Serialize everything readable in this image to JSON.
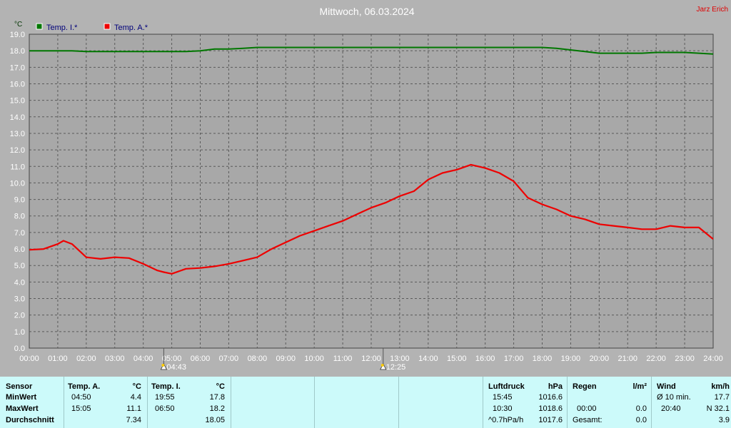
{
  "header": {
    "title": "Mittwoch, 06.03.2024",
    "author": "Jarz Erich",
    "y_unit": "°C"
  },
  "chart_data": {
    "type": "line",
    "title": "Mittwoch, 06.03.2024",
    "ylabel": "°C",
    "ylim": [
      0,
      19
    ],
    "xlim": [
      0,
      24
    ],
    "yticks": [
      "0.0",
      "1.0",
      "2.0",
      "3.0",
      "4.0",
      "5.0",
      "6.0",
      "7.0",
      "8.0",
      "9.0",
      "10.0",
      "11.0",
      "12.0",
      "13.0",
      "14.0",
      "15.0",
      "16.0",
      "17.0",
      "18.0",
      "19.0"
    ],
    "xticks": [
      "00:00",
      "01:00",
      "02:00",
      "03:00",
      "04:00",
      "05:00",
      "06:00",
      "07:00",
      "08:00",
      "09:00",
      "10:00",
      "11:00",
      "12:00",
      "13:00",
      "14:00",
      "15:00",
      "16:00",
      "17:00",
      "18:00",
      "19:00",
      "20:00",
      "21:00",
      "22:00",
      "23:00",
      "24:00"
    ],
    "grid": true,
    "legend_position": "top-left",
    "series": [
      {
        "name": "Temp. I.*",
        "color": "#007700",
        "x": [
          0,
          0.5,
          1,
          1.5,
          2,
          2.5,
          3,
          3.5,
          4,
          4.5,
          5,
          5.5,
          6,
          6.5,
          7,
          7.5,
          8,
          9,
          10,
          11,
          12,
          13,
          14,
          15,
          16,
          17,
          18,
          18.5,
          19,
          19.5,
          20,
          20.5,
          21,
          21.5,
          22,
          22.5,
          23,
          23.5,
          24
        ],
        "y": [
          18.0,
          18.0,
          18.0,
          18.0,
          17.95,
          17.95,
          17.95,
          17.95,
          17.95,
          17.95,
          17.95,
          17.95,
          18.0,
          18.1,
          18.1,
          18.15,
          18.2,
          18.2,
          18.2,
          18.2,
          18.2,
          18.2,
          18.2,
          18.2,
          18.2,
          18.2,
          18.2,
          18.15,
          18.05,
          17.95,
          17.85,
          17.85,
          17.85,
          17.85,
          17.9,
          17.9,
          17.9,
          17.85,
          17.8
        ]
      },
      {
        "name": "Temp. A.*",
        "color": "#ee0000",
        "x": [
          0,
          0.5,
          1,
          1.2,
          1.5,
          2,
          2.5,
          3,
          3.5,
          4,
          4.5,
          4.72,
          5,
          5.5,
          6,
          6.5,
          7,
          7.5,
          8,
          8.5,
          9,
          9.5,
          10,
          10.5,
          11,
          11.5,
          12,
          12.5,
          13,
          13.5,
          14,
          14.5,
          15,
          15.5,
          16,
          16.5,
          17,
          17.5,
          18,
          18.5,
          19,
          19.5,
          20,
          20.5,
          21,
          21.5,
          22,
          22.5,
          23,
          23.5,
          24
        ],
        "y": [
          5.95,
          6.0,
          6.3,
          6.5,
          6.3,
          5.5,
          5.4,
          5.5,
          5.45,
          5.1,
          4.7,
          4.6,
          4.5,
          4.8,
          4.85,
          4.95,
          5.1,
          5.3,
          5.5,
          6.0,
          6.4,
          6.8,
          7.1,
          7.4,
          7.7,
          8.1,
          8.5,
          8.8,
          9.2,
          9.5,
          10.2,
          10.6,
          10.8,
          11.1,
          10.9,
          10.6,
          10.1,
          9.1,
          8.7,
          8.4,
          8.0,
          7.8,
          7.5,
          7.4,
          7.3,
          7.2,
          7.2,
          7.4,
          7.3,
          7.3,
          6.6
        ]
      }
    ],
    "markers": [
      {
        "label": "04:43",
        "x": 4.72,
        "icon": "sunrise-icon"
      },
      {
        "label": "12:25",
        "x": 12.42,
        "icon": "sun-noon-icon"
      }
    ]
  },
  "stats": {
    "sensor": {
      "header": "Sensor",
      "rows": [
        "MinWert",
        "MaxWert",
        "Durchschnitt"
      ]
    },
    "temp_a": {
      "header": "Temp. A.",
      "unit": "°C",
      "min_time": "04:50",
      "min": "4.4",
      "max_time": "15:05",
      "max": "11.1",
      "avg": "7.34"
    },
    "temp_i": {
      "header": "Temp. I.",
      "unit": "°C",
      "min_time": "19:55",
      "min": "17.8",
      "max_time": "06:50",
      "max": "18.2",
      "avg": "18.05"
    },
    "pressure": {
      "header": "Luftdruck",
      "unit": "hPa",
      "min_time": "15:45",
      "min": "1016.6",
      "max_time": "10:30",
      "max": "1018.6",
      "trend": "^0.7hPa/h",
      "avg": "1017.6"
    },
    "rain": {
      "header": "Regen",
      "unit": "l/m²",
      "r1_time": "",
      "r1": "",
      "r2_time": "00:00",
      "r2": "0.0",
      "total_label": "Gesamt:",
      "total": "0.0"
    },
    "wind": {
      "header": "Wind",
      "unit": "km/h",
      "avg_label": "Ø 10 min.",
      "avg": "17.7",
      "gust_time": "20:40",
      "gust": "N 32.1",
      "mean": "3.9"
    }
  }
}
